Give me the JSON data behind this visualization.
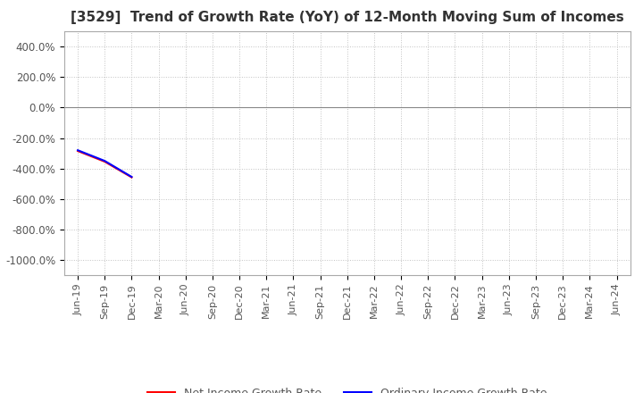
{
  "title": "[3529]  Trend of Growth Rate (YoY) of 12-Month Moving Sum of Incomes",
  "title_fontsize": 11,
  "ylim": [
    -1100,
    500
  ],
  "yticks": [
    400,
    200,
    0,
    -200,
    -400,
    -600,
    -800,
    -1000
  ],
  "ytick_labels": [
    "400.0%",
    "200.0%",
    "0.0%",
    "-200.0%",
    "-400.0%",
    "-600.0%",
    "-800.0%",
    "-1000.0%"
  ],
  "background_color": "#ffffff",
  "plot_bg_color": "#ffffff",
  "grid_color": "#bbbbbb",
  "line_ordinary_color": "#0000ff",
  "line_net_color": "#ff0000",
  "line_width": 1.5,
  "legend_ordinary": "Ordinary Income Growth Rate",
  "legend_net": "Net Income Growth Rate",
  "x_dates": [
    "Jun-19",
    "Sep-19",
    "Dec-19",
    "Mar-20",
    "Jun-20",
    "Sep-20",
    "Dec-20",
    "Mar-21",
    "Jun-21",
    "Sep-21",
    "Dec-21",
    "Mar-22",
    "Jun-22",
    "Sep-22",
    "Dec-22",
    "Mar-23",
    "Jun-23",
    "Sep-23",
    "Dec-23",
    "Mar-24",
    "Jun-24"
  ],
  "ordinary_income_growth": [
    -280,
    -350,
    -455,
    null,
    null,
    null,
    null,
    null,
    null,
    null,
    null,
    null,
    null,
    null,
    null,
    null,
    null,
    null,
    null,
    null,
    null
  ],
  "net_income_growth": [
    -285,
    -355,
    -458,
    null,
    null,
    null,
    null,
    null,
    null,
    null,
    null,
    null,
    null,
    null,
    null,
    null,
    null,
    null,
    null,
    null,
    null
  ]
}
